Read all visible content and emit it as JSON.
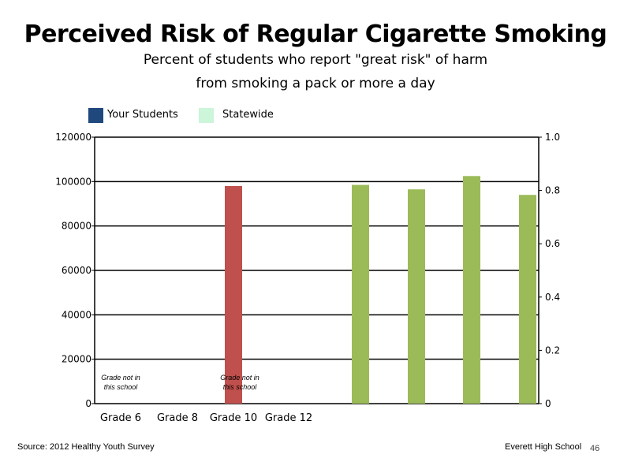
{
  "title": "Perceived Risk of Regular Cigarette Smoking",
  "subtitle_line1": "Percent of students who report \"great risk\" of harm",
  "subtitle_line2": "from smoking a pack or more a day",
  "legend": [
    {
      "label": "Your Students",
      "color": "#1f497d"
    },
    {
      "label": "Statewide",
      "color": "#ccf5d9"
    }
  ],
  "source": "Source: 2012 Healthy Youth Survey",
  "school": "Everett High School",
  "slide_number": "46",
  "chart_data": {
    "type": "bar",
    "categories": [
      "Grade 6",
      "Grade 8",
      "Grade 10",
      "Grade 12"
    ],
    "left_axis": {
      "ylim": [
        0,
        120000
      ],
      "ticks": [
        "0",
        "20000",
        "40000",
        "60000",
        "80000",
        "100000",
        "120000"
      ]
    },
    "right_axis": {
      "ylim": [
        0,
        1.0
      ],
      "ticks": [
        "0",
        "0.2",
        "0.4",
        "0.6",
        "0.8",
        "1.0"
      ]
    },
    "grid": true,
    "bars": [
      {
        "value": 98000,
        "color": "#c0504d"
      },
      {
        "value": 98500,
        "color": "#9bbb59"
      },
      {
        "value": 96500,
        "color": "#9bbb59"
      },
      {
        "value": 102500,
        "color": "#9bbb59"
      },
      {
        "value": 94000,
        "color": "#9bbb59"
      }
    ],
    "annotations": [
      {
        "line1": "Grade not in",
        "line2": "this school"
      },
      {
        "line1": "Grade not in",
        "line2": "this school"
      }
    ]
  }
}
